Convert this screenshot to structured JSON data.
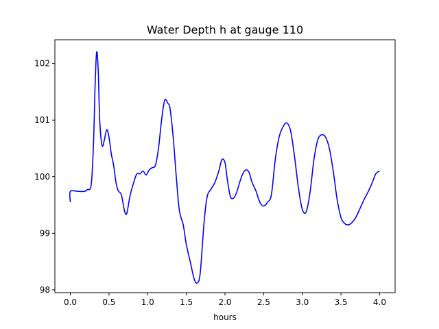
{
  "chart_data": {
    "type": "line",
    "title": "Water Depth h at gauge 110",
    "xlabel": "hours",
    "ylabel": "",
    "xlim": [
      -0.2,
      4.2
    ],
    "ylim": [
      97.95,
      102.42
    ],
    "grid": false,
    "line_color": "#0000ff",
    "xticks": [
      {
        "value": 0.0,
        "label": "0.0"
      },
      {
        "value": 0.5,
        "label": "0.5"
      },
      {
        "value": 1.0,
        "label": "1.0"
      },
      {
        "value": 1.5,
        "label": "1.5"
      },
      {
        "value": 2.0,
        "label": "2.0"
      },
      {
        "value": 2.5,
        "label": "2.5"
      },
      {
        "value": 3.0,
        "label": "3.0"
      },
      {
        "value": 3.5,
        "label": "3.5"
      },
      {
        "value": 4.0,
        "label": "4.0"
      }
    ],
    "yticks": [
      {
        "value": 98,
        "label": "98"
      },
      {
        "value": 99,
        "label": "99"
      },
      {
        "value": 100,
        "label": "100"
      },
      {
        "value": 101,
        "label": "101"
      },
      {
        "value": 102,
        "label": "102"
      }
    ],
    "series": [
      {
        "name": "",
        "points": [
          [
            0.0,
            99.55
          ],
          [
            0.0,
            99.74
          ],
          [
            0.1,
            99.74
          ],
          [
            0.18,
            99.74
          ],
          [
            0.22,
            99.77
          ],
          [
            0.27,
            99.86
          ],
          [
            0.3,
            100.6
          ],
          [
            0.32,
            101.6
          ],
          [
            0.34,
            102.2
          ],
          [
            0.36,
            101.9
          ],
          [
            0.38,
            101.0
          ],
          [
            0.41,
            100.55
          ],
          [
            0.44,
            100.65
          ],
          [
            0.47,
            100.83
          ],
          [
            0.5,
            100.7
          ],
          [
            0.53,
            100.4
          ],
          [
            0.56,
            100.2
          ],
          [
            0.59,
            99.9
          ],
          [
            0.62,
            99.75
          ],
          [
            0.66,
            99.68
          ],
          [
            0.7,
            99.4
          ],
          [
            0.73,
            99.35
          ],
          [
            0.77,
            99.65
          ],
          [
            0.82,
            99.9
          ],
          [
            0.86,
            100.05
          ],
          [
            0.9,
            100.05
          ],
          [
            0.94,
            100.1
          ],
          [
            0.98,
            100.03
          ],
          [
            1.02,
            100.12
          ],
          [
            1.06,
            100.16
          ],
          [
            1.1,
            100.2
          ],
          [
            1.14,
            100.5
          ],
          [
            1.18,
            101.0
          ],
          [
            1.22,
            101.35
          ],
          [
            1.26,
            101.3
          ],
          [
            1.29,
            101.2
          ],
          [
            1.33,
            100.7
          ],
          [
            1.37,
            100.0
          ],
          [
            1.41,
            99.4
          ],
          [
            1.46,
            99.15
          ],
          [
            1.5,
            98.8
          ],
          [
            1.55,
            98.5
          ],
          [
            1.6,
            98.2
          ],
          [
            1.64,
            98.12
          ],
          [
            1.68,
            98.3
          ],
          [
            1.73,
            99.2
          ],
          [
            1.77,
            99.65
          ],
          [
            1.82,
            99.78
          ],
          [
            1.87,
            99.9
          ],
          [
            1.92,
            100.1
          ],
          [
            1.96,
            100.3
          ],
          [
            2.0,
            100.25
          ],
          [
            2.03,
            99.95
          ],
          [
            2.07,
            99.65
          ],
          [
            2.11,
            99.62
          ],
          [
            2.15,
            99.72
          ],
          [
            2.19,
            99.9
          ],
          [
            2.23,
            100.05
          ],
          [
            2.27,
            100.12
          ],
          [
            2.31,
            100.08
          ],
          [
            2.35,
            99.9
          ],
          [
            2.4,
            99.75
          ],
          [
            2.45,
            99.55
          ],
          [
            2.5,
            99.48
          ],
          [
            2.55,
            99.55
          ],
          [
            2.6,
            99.68
          ],
          [
            2.65,
            100.3
          ],
          [
            2.7,
            100.7
          ],
          [
            2.75,
            100.88
          ],
          [
            2.8,
            100.95
          ],
          [
            2.85,
            100.8
          ],
          [
            2.9,
            100.35
          ],
          [
            2.95,
            99.8
          ],
          [
            3.0,
            99.42
          ],
          [
            3.05,
            99.38
          ],
          [
            3.1,
            99.72
          ],
          [
            3.15,
            100.3
          ],
          [
            3.2,
            100.65
          ],
          [
            3.25,
            100.74
          ],
          [
            3.3,
            100.7
          ],
          [
            3.35,
            100.5
          ],
          [
            3.4,
            100.1
          ],
          [
            3.45,
            99.6
          ],
          [
            3.5,
            99.28
          ],
          [
            3.55,
            99.17
          ],
          [
            3.6,
            99.15
          ],
          [
            3.65,
            99.2
          ],
          [
            3.7,
            99.3
          ],
          [
            3.75,
            99.45
          ],
          [
            3.8,
            99.6
          ],
          [
            3.85,
            99.73
          ],
          [
            3.9,
            99.88
          ],
          [
            3.95,
            100.05
          ],
          [
            4.0,
            100.1
          ]
        ]
      }
    ]
  }
}
